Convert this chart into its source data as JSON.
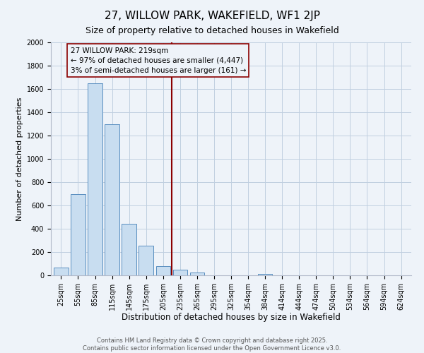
{
  "title": "27, WILLOW PARK, WAKEFIELD, WF1 2JP",
  "subtitle": "Size of property relative to detached houses in Wakefield",
  "xlabel": "Distribution of detached houses by size in Wakefield",
  "ylabel": "Number of detached properties",
  "bar_labels": [
    "25sqm",
    "55sqm",
    "85sqm",
    "115sqm",
    "145sqm",
    "175sqm",
    "205sqm",
    "235sqm",
    "265sqm",
    "295sqm",
    "325sqm",
    "354sqm",
    "384sqm",
    "414sqm",
    "444sqm",
    "474sqm",
    "504sqm",
    "534sqm",
    "564sqm",
    "594sqm",
    "624sqm"
  ],
  "bar_values": [
    65,
    700,
    1650,
    1300,
    440,
    255,
    80,
    50,
    25,
    0,
    0,
    0,
    15,
    0,
    0,
    0,
    0,
    0,
    0,
    0,
    0
  ],
  "bar_color": "#c8ddf0",
  "bar_edge_color": "#5a8fc0",
  "ylim": [
    0,
    2000
  ],
  "yticks": [
    0,
    200,
    400,
    600,
    800,
    1000,
    1200,
    1400,
    1600,
    1800,
    2000
  ],
  "vline_color": "#8b0000",
  "annotation_title": "27 WILLOW PARK: 219sqm",
  "annotation_line1": "← 97% of detached houses are smaller (4,447)",
  "annotation_line2": "3% of semi-detached houses are larger (161) →",
  "footer_line1": "Contains HM Land Registry data © Crown copyright and database right 2025.",
  "footer_line2": "Contains public sector information licensed under the Open Government Licence v3.0.",
  "background_color": "#eef3f9",
  "grid_color": "#c0cfe0",
  "title_fontsize": 11,
  "subtitle_fontsize": 9,
  "xlabel_fontsize": 8.5,
  "ylabel_fontsize": 8,
  "tick_fontsize": 7,
  "footer_fontsize": 6,
  "ann_fontsize": 7.5
}
